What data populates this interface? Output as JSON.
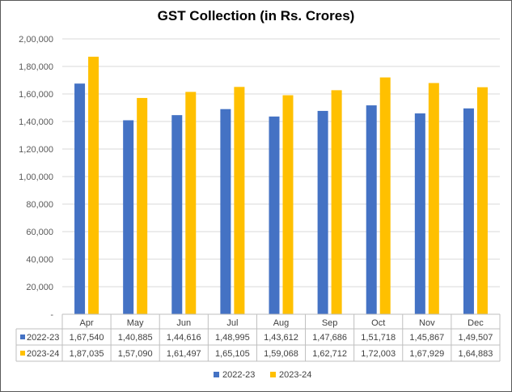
{
  "chart_data": {
    "type": "bar",
    "title": "GST Collection (in Rs. Crores)",
    "xlabel": "",
    "ylabel": "",
    "categories": [
      "Apr",
      "May",
      "Jun",
      "Jul",
      "Aug",
      "Sep",
      "Oct",
      "Nov",
      "Dec"
    ],
    "series": [
      {
        "name": "2022-23",
        "color": "#4472C4",
        "values": [
          167540,
          140885,
          144616,
          148995,
          143612,
          147686,
          151718,
          145867,
          149507
        ],
        "labels": [
          "1,67,540",
          "1,40,885",
          "1,44,616",
          "1,48,995",
          "1,43,612",
          "1,47,686",
          "1,51,718",
          "1,45,867",
          "1,49,507"
        ]
      },
      {
        "name": "2023-24",
        "color": "#FFC000",
        "values": [
          187035,
          157090,
          161497,
          165105,
          159068,
          162712,
          172003,
          167929,
          164883
        ],
        "labels": [
          "1,87,035",
          "1,57,090",
          "1,61,497",
          "1,65,105",
          "1,59,068",
          "1,62,712",
          "1,72,003",
          "1,67,929",
          "1,64,883"
        ]
      }
    ],
    "ylim": [
      0,
      200000
    ],
    "yticks": [
      0,
      20000,
      40000,
      60000,
      80000,
      100000,
      120000,
      140000,
      160000,
      180000,
      200000
    ],
    "ytick_labels": [
      "-",
      "20,000",
      "40,000",
      "60,000",
      "80,000",
      "1,00,000",
      "1,20,000",
      "1,40,000",
      "1,60,000",
      "1,80,000",
      "2,00,000"
    ],
    "grid": "horizontal",
    "legend": "bottom",
    "data_table": true
  }
}
